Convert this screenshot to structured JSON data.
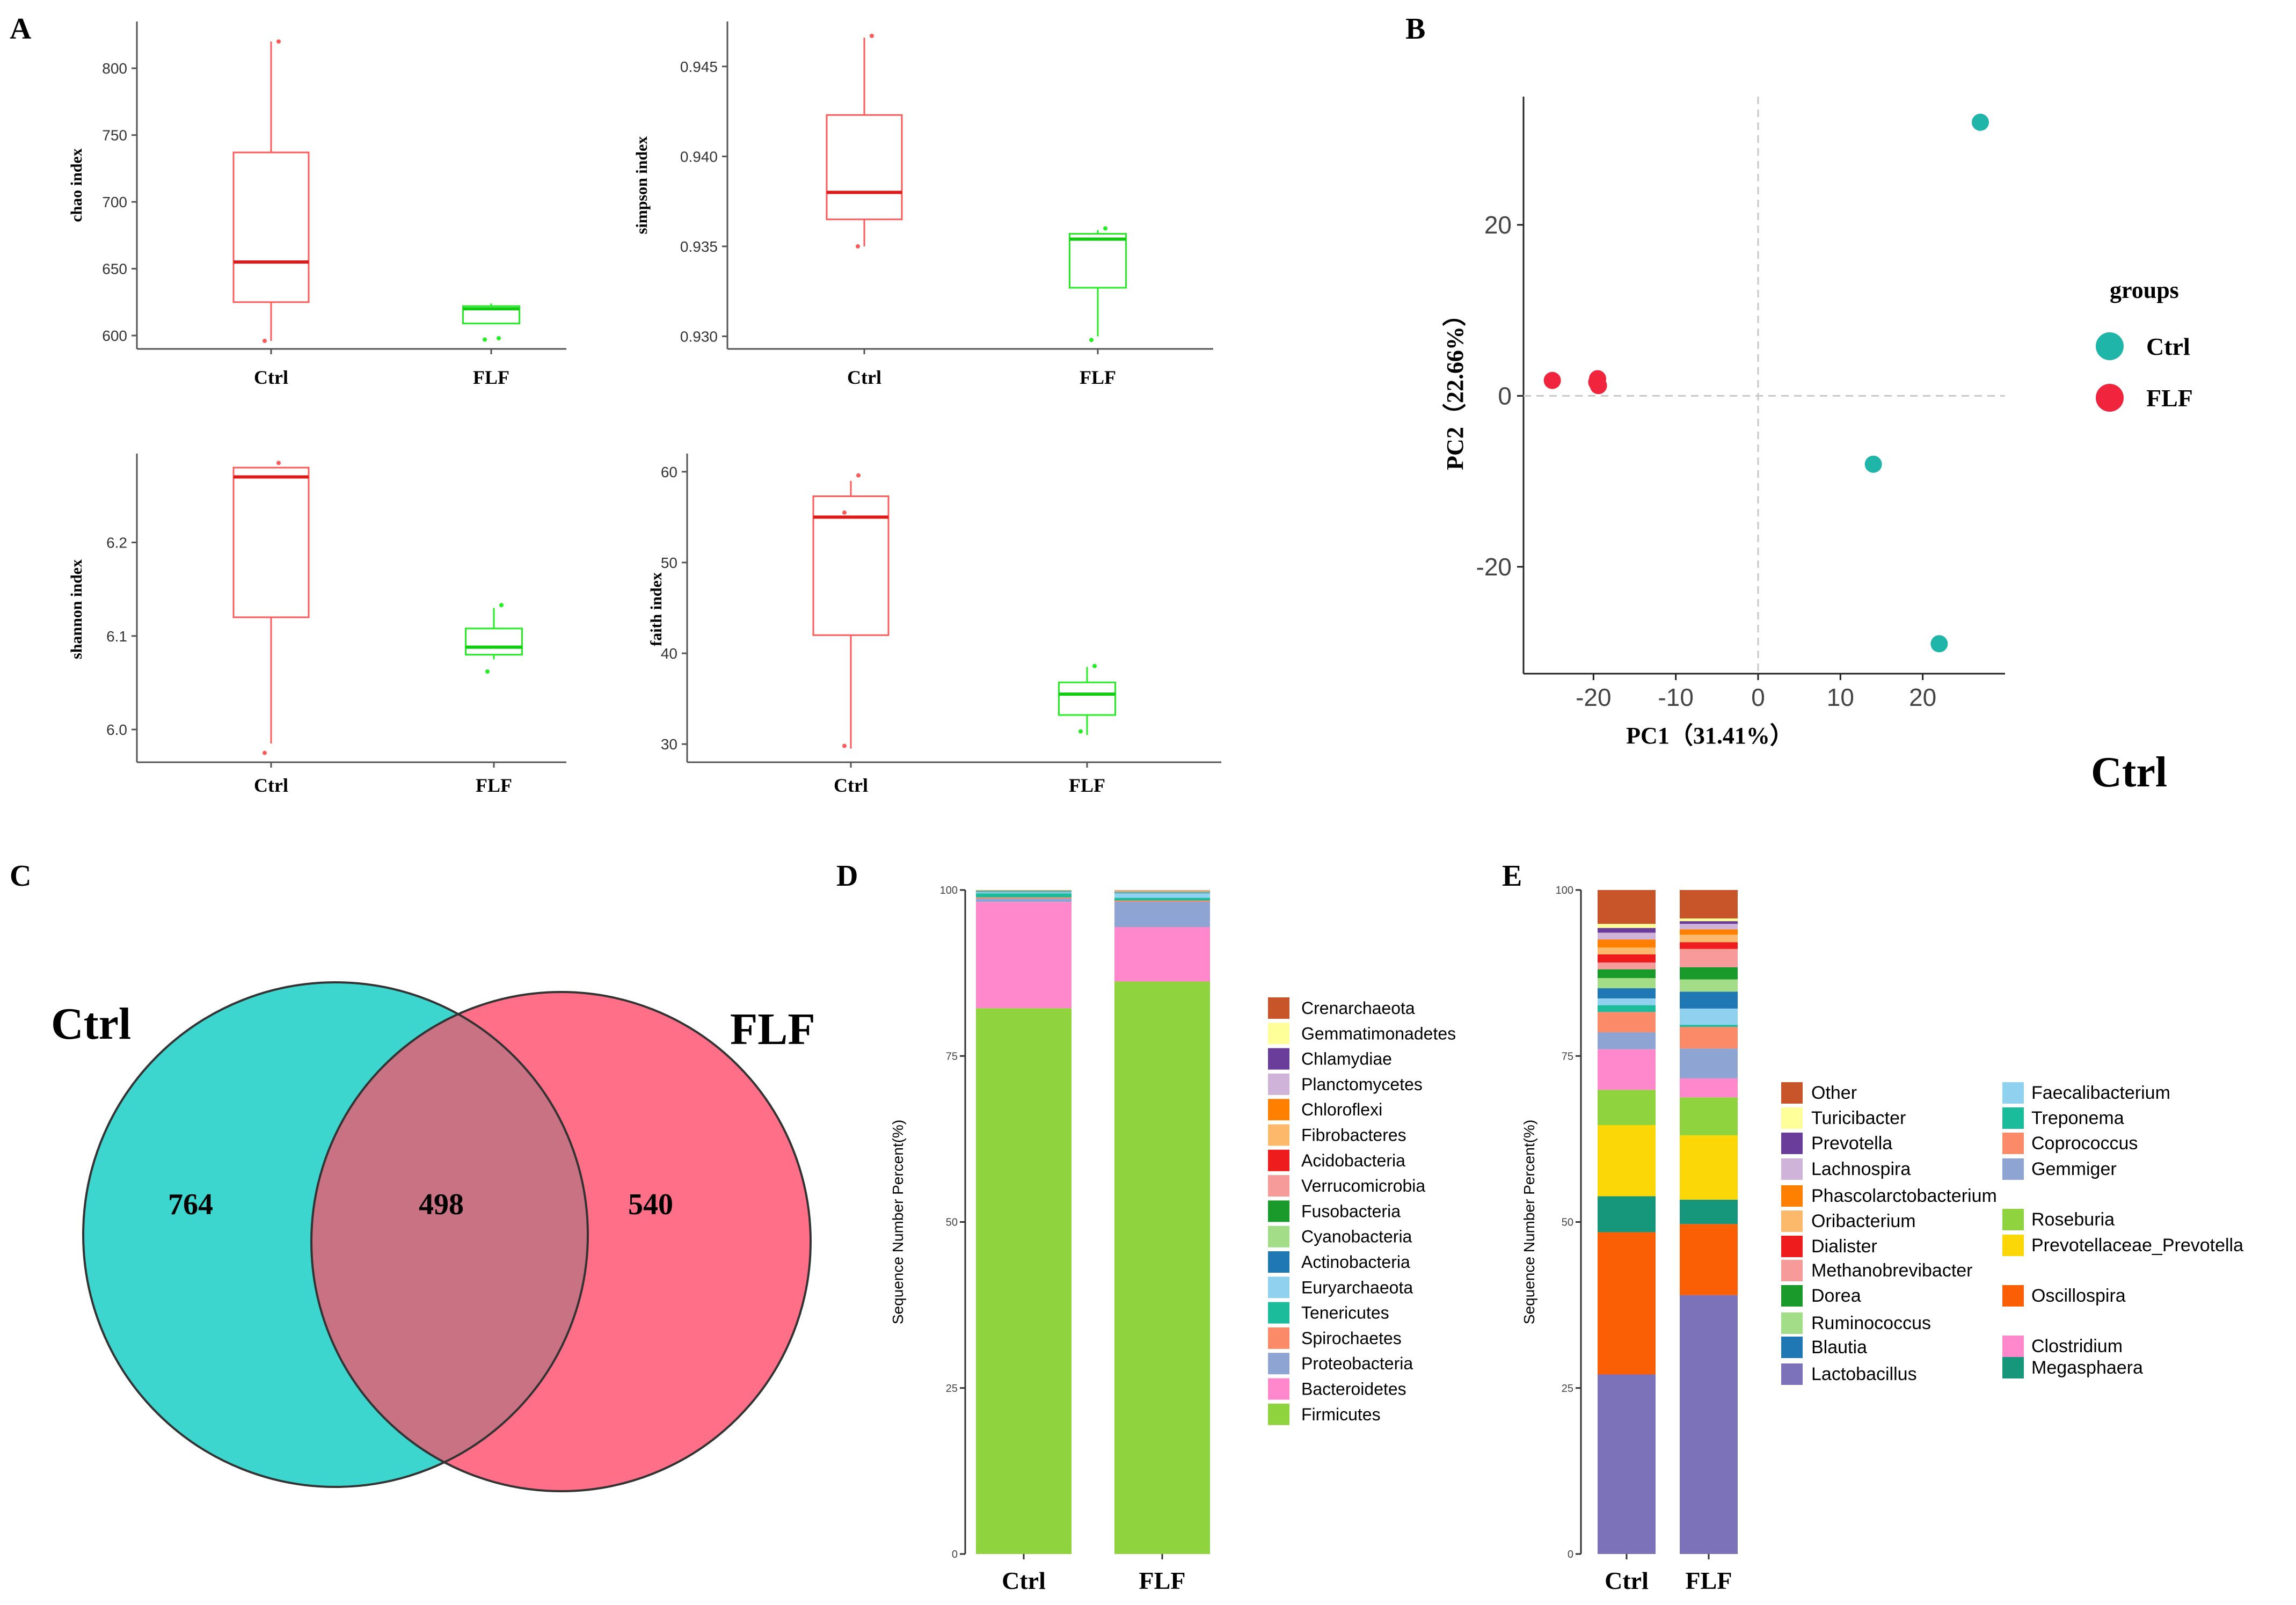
{
  "panel_labels": {
    "A": "A",
    "B": "B",
    "C": "C",
    "D": "D",
    "E": "E"
  },
  "chart_data": [
    {
      "id": "chao",
      "type": "box",
      "ylabel": "chao  index",
      "categories": [
        "Ctrl",
        "FLF"
      ],
      "ylim": [
        590,
        835
      ],
      "yticks": [
        600,
        650,
        700,
        750,
        800
      ],
      "colors": [
        "#ff5a5a",
        "#22ee22"
      ],
      "boxes": [
        {
          "group": "Ctrl",
          "whisker_low": 596,
          "q1": 625,
          "median": 655,
          "q3": 737,
          "whisker_high": 820,
          "points": [
            596,
            820
          ]
        },
        {
          "group": "FLF",
          "whisker_low": 609,
          "q1": 609,
          "median": 620,
          "q3": 622,
          "whisker_high": 624,
          "points": [
            597,
            598
          ]
        }
      ]
    },
    {
      "id": "simpson",
      "type": "box",
      "ylabel": "simpson index",
      "categories": [
        "Ctrl",
        "FLF"
      ],
      "ylim": [
        0.9293,
        0.9475
      ],
      "yticks": [
        0.93,
        0.935,
        0.94,
        0.945
      ],
      "tick_labels": [
        "0.930",
        "0.935",
        "0.940",
        "0.945"
      ],
      "colors": [
        "#ff5a5a",
        "#22ee22"
      ],
      "boxes": [
        {
          "group": "Ctrl",
          "whisker_low": 0.935,
          "q1": 0.9365,
          "median": 0.938,
          "q3": 0.9423,
          "whisker_high": 0.9466,
          "points": [
            0.935,
            0.9467
          ]
        },
        {
          "group": "FLF",
          "whisker_low": 0.93,
          "q1": 0.9327,
          "median": 0.9354,
          "q3": 0.9357,
          "whisker_high": 0.9359,
          "points": [
            0.9298,
            0.936
          ]
        }
      ]
    },
    {
      "id": "shannon",
      "type": "box",
      "ylabel": "shannon  index",
      "categories": [
        "Ctrl",
        "FLF"
      ],
      "ylim": [
        5.965,
        6.295
      ],
      "yticks": [
        6.0,
        6.1,
        6.2
      ],
      "tick_labels": [
        "6.0",
        "6.1",
        "6.2"
      ],
      "colors": [
        "#ff5a5a",
        "#22ee22"
      ],
      "boxes": [
        {
          "group": "Ctrl",
          "whisker_low": 5.985,
          "q1": 6.12,
          "median": 6.27,
          "q3": 6.28,
          "whisker_high": 6.28,
          "points": [
            5.975,
            6.285
          ]
        },
        {
          "group": "FLF",
          "whisker_low": 6.075,
          "q1": 6.08,
          "median": 6.088,
          "q3": 6.108,
          "whisker_high": 6.13,
          "points": [
            6.062,
            6.133
          ]
        }
      ]
    },
    {
      "id": "faith",
      "type": "box",
      "ylabel": "faith index",
      "categories": [
        "Ctrl",
        "FLF"
      ],
      "ylim": [
        28,
        62
      ],
      "yticks": [
        30,
        40,
        50,
        60
      ],
      "colors": [
        "#ff5a5a",
        "#22ee22"
      ],
      "boxes": [
        {
          "group": "Ctrl",
          "whisker_low": 29.5,
          "q1": 42,
          "median": 55,
          "q3": 57.3,
          "whisker_high": 59,
          "points": [
            29.8,
            59.6,
            55.5
          ]
        },
        {
          "group": "FLF",
          "whisker_low": 31,
          "q1": 33.2,
          "median": 35.5,
          "q3": 36.8,
          "whisker_high": 38.5,
          "points": [
            31.4,
            38.6
          ]
        }
      ]
    },
    {
      "id": "pca",
      "type": "scatter",
      "xlabel": "PC1（31.41%）",
      "ylabel": "PC2（22.66%）",
      "xlim": [
        -28.5,
        30
      ],
      "ylim": [
        -32.5,
        35
      ],
      "xticks": [
        -20,
        -10,
        0,
        10,
        20
      ],
      "yticks": [
        -20,
        0,
        20
      ],
      "tick_labels_x": [
        "-20",
        "-10",
        "0",
        "10",
        "20"
      ],
      "tick_labels_y": [
        "-20",
        "0",
        "20"
      ],
      "legend_title": "groups",
      "series": [
        {
          "name": "Ctrl",
          "color": "#1fb5a8",
          "points": [
            [
              27,
              32
            ],
            [
              14,
              -8
            ],
            [
              22,
              -29
            ]
          ]
        },
        {
          "name": "FLF",
          "color": "#f0243c",
          "points": [
            [
              -25,
              1.8
            ],
            [
              -19.5,
              2
            ],
            [
              -19.4,
              1.2
            ],
            [
              -19.6,
              1.6
            ]
          ]
        }
      ]
    },
    {
      "id": "venn",
      "type": "venn",
      "sets": [
        {
          "name": "Ctrl",
          "unique": "764",
          "color": "#3dd6cf"
        },
        {
          "name": "FLF",
          "unique": "540",
          "color": "#ff6f88"
        }
      ],
      "intersection": "498",
      "intersection_color": "#c87284"
    },
    {
      "id": "phylum",
      "type": "stacked-bar",
      "ylabel": "Sequence Number Percent(%)",
      "categories": [
        "Ctrl",
        "FLF"
      ],
      "yticks": [
        0,
        25,
        50,
        75,
        100
      ],
      "series": [
        {
          "name": "Firmicutes",
          "color": "#8fd43e",
          "values": [
            82.2,
            86.2
          ]
        },
        {
          "name": "Bacteroidetes",
          "color": "#ff88cc",
          "values": [
            16,
            8.2
          ]
        },
        {
          "name": "Proteobacteria",
          "color": "#8ea4d3",
          "values": [
            0.5,
            3.8
          ]
        },
        {
          "name": "Spirochaetes",
          "color": "#fb8b68",
          "values": [
            0.2,
            0.2
          ]
        },
        {
          "name": "Tenericutes",
          "color": "#1abc9c",
          "values": [
            0.6,
            0.4
          ]
        },
        {
          "name": "Euryarchaeota",
          "color": "#8fd1ee",
          "values": [
            0.2,
            0.7
          ]
        },
        {
          "name": "Actinobacteria",
          "color": "#1f78b4",
          "values": [
            0.1,
            0.1
          ]
        },
        {
          "name": "Cyanobacteria",
          "color": "#a4dd87",
          "values": [
            0.1,
            0.1
          ]
        },
        {
          "name": "Fusobacteria",
          "color": "#1a9a2a",
          "values": [
            0.05,
            0.05
          ]
        },
        {
          "name": "Verrucomicrobia",
          "color": "#f79a9a",
          "values": [
            0.02,
            0.1
          ]
        },
        {
          "name": "Acidobacteria",
          "color": "#ee1c1c",
          "values": [
            0.01,
            0.02
          ]
        },
        {
          "name": "Fibrobacteres",
          "color": "#fcb96b",
          "values": [
            0.01,
            0.03
          ]
        },
        {
          "name": "Chloroflexi",
          "color": "#ff7f00",
          "values": [
            0.01,
            0.02
          ]
        },
        {
          "name": "Planctomycetes",
          "color": "#cfb3d9",
          "values": [
            0,
            0.02
          ]
        },
        {
          "name": "Chlamydiae",
          "color": "#6a3d9a",
          "values": [
            0,
            0.01
          ]
        },
        {
          "name": "Gemmatimonadetes",
          "color": "#ffff99",
          "values": [
            0,
            0.01
          ]
        },
        {
          "name": "Crenarchaeota",
          "color": "#c8542a",
          "values": [
            0,
            0.02
          ]
        }
      ],
      "legend_order": [
        "Crenarchaeota",
        "Gemmatimonadetes",
        "Chlamydiae",
        "Planctomycetes",
        "Chloroflexi",
        "Fibrobacteres",
        "Acidobacteria",
        "Verrucomicrobia",
        "Fusobacteria",
        "Cyanobacteria",
        "Actinobacteria",
        "Euryarchaeota",
        "Tenericutes",
        "Spirochaetes",
        "Proteobacteria",
        "Bacteroidetes",
        "Firmicutes"
      ]
    },
    {
      "id": "genus",
      "type": "stacked-bar",
      "ylabel": "Sequence Number Percent(%)",
      "categories": [
        "Ctrl",
        "FLF"
      ],
      "yticks": [
        0,
        25,
        50,
        75,
        100
      ],
      "series": [
        {
          "name": "Lactobacillus",
          "color": "#7b72b9",
          "values": [
            26.5,
            38.2
          ]
        },
        {
          "name": "Oscillospira",
          "color": "#fa5f05",
          "values": [
            21,
            10.5
          ]
        },
        {
          "name": "Megasphaera",
          "color": "#16977c",
          "values": [
            5.3,
            3.6
          ]
        },
        {
          "name": "Prevotellaceae_Prevotella",
          "color": "#fcd708",
          "values": [
            10.5,
            9.5
          ]
        },
        {
          "name": "Roseburia",
          "color": "#8fd43e",
          "values": [
            5.2,
            5.6
          ]
        },
        {
          "name": "Clostridium",
          "color": "#ff88cc",
          "values": [
            6,
            2.8
          ]
        },
        {
          "name": "Gemmiger",
          "color": "#8ea4d3",
          "values": [
            2.5,
            4.4
          ]
        },
        {
          "name": "Coprococcus",
          "color": "#fb8b68",
          "values": [
            3,
            3.2
          ]
        },
        {
          "name": "Treponema",
          "color": "#1abc9c",
          "values": [
            1,
            0.3
          ]
        },
        {
          "name": "Faecalibacterium",
          "color": "#8fd1ee",
          "values": [
            1,
            2.4
          ]
        },
        {
          "name": "Blautia",
          "color": "#1f78b4",
          "values": [
            1.5,
            2.5
          ]
        },
        {
          "name": "Ruminococcus",
          "color": "#a4dd87",
          "values": [
            1.5,
            1.8
          ]
        },
        {
          "name": "Dorea",
          "color": "#1a9a2a",
          "values": [
            1.3,
            1.8
          ]
        },
        {
          "name": "Methanobrevibacter",
          "color": "#f79a9a",
          "values": [
            1,
            2.7
          ]
        },
        {
          "name": "Dialister",
          "color": "#ee1c1c",
          "values": [
            1.2,
            1
          ]
        },
        {
          "name": "Oribacterium",
          "color": "#fcb96b",
          "values": [
            1,
            1.1
          ]
        },
        {
          "name": "Phascolarctobacterium",
          "color": "#ff7f00",
          "values": [
            1.2,
            0.8
          ]
        },
        {
          "name": "Lachnospira",
          "color": "#cfb3d9",
          "values": [
            1,
            0.8
          ]
        },
        {
          "name": "Prevotella",
          "color": "#6a3d9a",
          "values": [
            0.7,
            0.4
          ]
        },
        {
          "name": "Turicibacter",
          "color": "#ffff99",
          "values": [
            0.6,
            0.4
          ]
        },
        {
          "name": "Other",
          "color": "#c8542a",
          "values": [
            5,
            4.2
          ]
        }
      ],
      "legend_left": [
        "Other",
        "Turicibacter",
        "Prevotella",
        "Lachnospira",
        "Phascolarctobacterium",
        "Oribacterium",
        "Dialister",
        "Methanobrevibacter",
        "Dorea",
        "Ruminococcus",
        "Blautia",
        "Lactobacillus"
      ],
      "legend_right": [
        "Faecalibacterium",
        "Treponema",
        "Coprococcus",
        "Gemmiger",
        "Roseburia",
        "Prevotellaceae_Prevotella",
        "Oscillospira",
        "Clostridium",
        "Megasphaera"
      ]
    }
  ],
  "venn_stray_label": "Ctrl"
}
